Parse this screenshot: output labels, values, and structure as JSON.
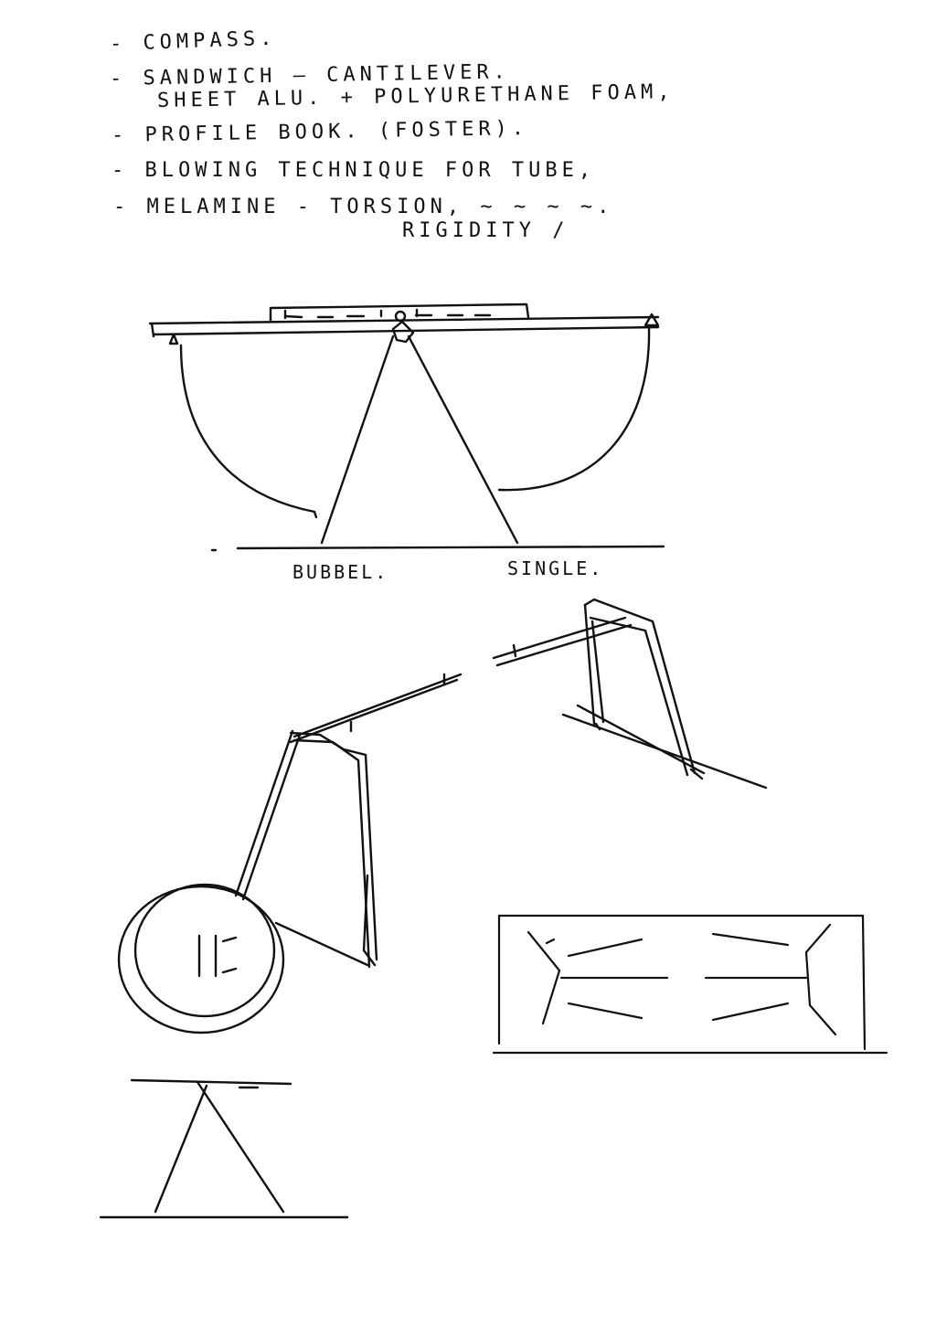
{
  "notes": [
    "- COMPASS.",
    "- SANDWICH  —  CANTILEVER.",
    "SHEET ALU. + POLYURETHANE FOAM,",
    "- PROFILE BOOK. (FOSTER).",
    "- BLOWING TECHNIQUE  FOR TUBE,",
    "- MELAMINE  -  TORSION,  ~ ~ ~ ~.",
    "RIGIDITY /"
  ],
  "labels": {
    "bubble": "BUBBEL.",
    "single": "SINGLE."
  }
}
